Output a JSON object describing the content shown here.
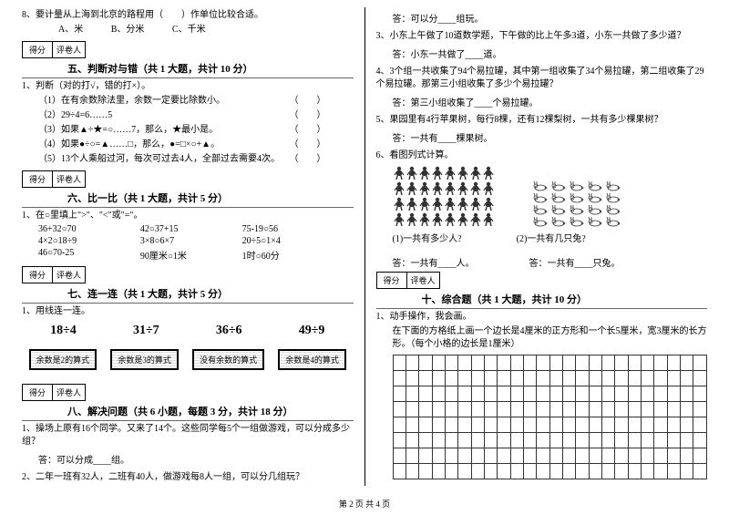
{
  "left": {
    "q8": {
      "text": "8、要计量从上海到北京的路程用（　　）作单位比较合适。",
      "opts": [
        "A、米",
        "B、分米",
        "C、千米"
      ]
    },
    "score_labels": [
      "得分",
      "评卷人"
    ],
    "sec5": {
      "title": "五、判断对与错（共 1 大题，共计 10 分）",
      "lead": "1、判断（对的打√，错的打×）。",
      "items": [
        "（1）在有余数除法里，余数一定要比除数小。",
        "（2）29÷4=6……5",
        "（3）如果▲÷★=○……7，那么，★最小是。",
        "（4）如果●÷○=▲……□，那么，●=□×○+▲。",
        "（5）13个人乘船过河，每次可过去4人，全部过去需要4次。"
      ]
    },
    "sec6": {
      "title": "六、比一比（共 1 大题，共计 5 分）",
      "lead": "1、在○里填上\">\"、\"<\"或\"=\"。",
      "rows": [
        [
          "36+32○70",
          "42○37+15",
          "75-19○56"
        ],
        [
          "4×2○18÷9",
          "3×8○6×7",
          "20÷5○1×4"
        ],
        [
          "46○70-25",
          "90厘米○1米",
          "1时○60分"
        ]
      ]
    },
    "sec7": {
      "title": "七、连一连（共 1 大题，共计 5 分）",
      "lead": "1、用线连一连。",
      "exprs": [
        "18÷4",
        "31÷7",
        "36÷6",
        "49÷9"
      ],
      "boxes": [
        "余数是2的算式",
        "余数是3的算式",
        "没有余数的算式",
        "余数是4的算式"
      ]
    },
    "sec8": {
      "title": "八、解决问题（共 6 小题，每题 3 分，共计 18 分）",
      "q1": "1、操场上原有16个同学。又来了14个。这些同学每5个一组做游戏，可以分成多少组？",
      "a1": "答：可以分成____组。",
      "q2": "2、二年一班有32人，二班有40人，做游戏每8人一组，可以分几组玩？"
    }
  },
  "right": {
    "a2": "答：可以分____组玩。",
    "q3": "3、小东上午做了10道数学题，下午做的比上午多3道，小东一共做了多少道？",
    "a3": "答：小东一共做了____道。",
    "q4": "4、3个组一共收集了94个易拉罐，其中第一组收集了34个易拉罐，第二组收集了29个易拉罐。那第三小组收集了多少个易拉罐？",
    "a4": "答：第三小组收集了____个易拉罐。",
    "q5": "5、果园里有4行苹果树，每行8棵，还有12棵梨树，一共有多少棵果树？",
    "a5": "答：一共有____棵果树。",
    "q6": "6、看图列式计算。",
    "sub1": "(1)一共有多少人?",
    "sub2": "(2)一共有几只兔?",
    "ans1": "答：一共有____人。",
    "ans2": "答：一共有____只兔。",
    "score_labels": [
      "得分",
      "评卷人"
    ],
    "sec10": {
      "title": "十、综合题（共 1 大题，共计 10 分）",
      "lead": "1、动手操作，我会画。",
      "text": "在下面的方格纸上画一个边长是4厘米的正方形和一个长5厘米，宽3厘米的长方形。（每个小格的边长是1厘米）"
    },
    "grid": {
      "rows": 8,
      "cols": 24
    }
  },
  "footer": "第 2 页  共 4 页"
}
